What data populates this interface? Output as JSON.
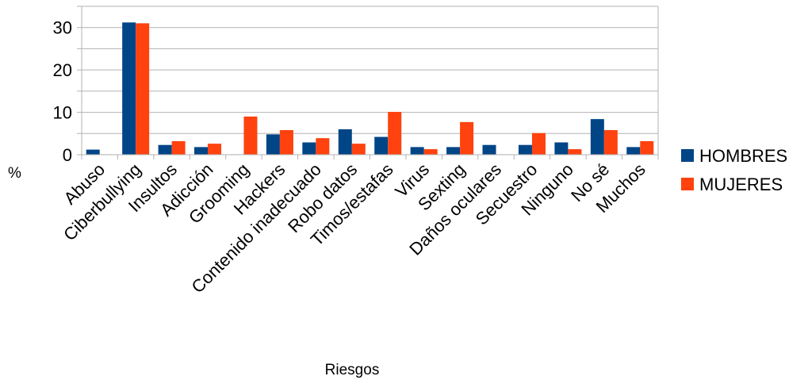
{
  "chart_data": {
    "type": "bar",
    "xlabel": "Riesgos",
    "ylabel": "%",
    "ylim": [
      0,
      35
    ],
    "yticks": [
      0,
      10,
      20,
      30
    ],
    "grid": true,
    "legend_position": "right",
    "categories": [
      "Abuso",
      "Ciberbullying",
      "Insultos",
      "Adicción",
      "Grooming",
      "Hackers",
      "Contenido inadecuado",
      "Robo datos",
      "Timos/estafas",
      "Virus",
      "Sexting",
      "Daños oculares",
      "Secuestro",
      "Ninguno",
      "No sé",
      "Muchos"
    ],
    "series": [
      {
        "name": "HOMBRES",
        "color": "#004586",
        "values": [
          1.2,
          31.2,
          2.3,
          1.8,
          0.1,
          4.8,
          2.9,
          6.0,
          4.2,
          1.8,
          1.8,
          2.3,
          2.3,
          2.9,
          8.4,
          1.8
        ]
      },
      {
        "name": "MUJERES",
        "color": "#ff420e",
        "values": [
          0.1,
          31.0,
          3.2,
          2.6,
          9.0,
          5.8,
          3.9,
          2.6,
          10.1,
          1.3,
          7.7,
          0.1,
          5.1,
          1.3,
          5.8,
          3.2
        ]
      }
    ]
  }
}
